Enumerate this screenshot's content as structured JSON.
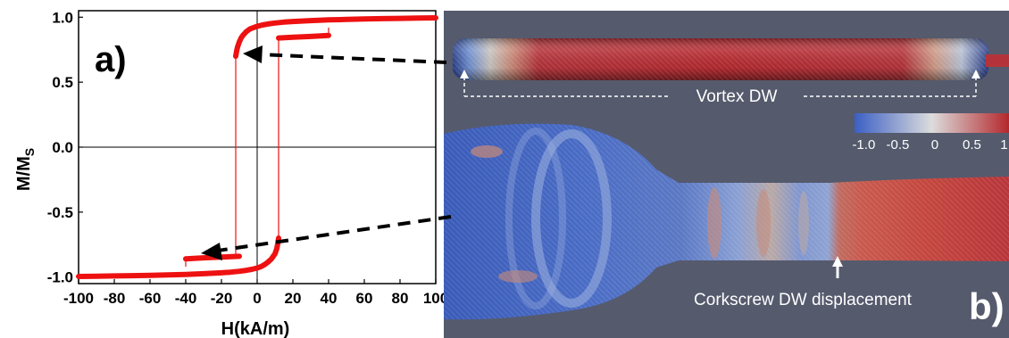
{
  "chart_data": {
    "type": "line",
    "panel_label": "a)",
    "xlabel": "H(kA/m)",
    "ylabel_main": "M/M",
    "ylabel_sub": "S",
    "xlim": [
      -100,
      100
    ],
    "ylim": [
      -1.05,
      1.05
    ],
    "xticks": [
      -100,
      -80,
      -60,
      -40,
      -20,
      0,
      20,
      40,
      60,
      80,
      100
    ],
    "xtick_labels": [
      "-100",
      "-80",
      "-60",
      "-40",
      "-20",
      "0",
      "20",
      "40",
      "60",
      "80",
      "100"
    ],
    "yticks": [
      1.0,
      0.5,
      0.0,
      -0.5,
      -1.0
    ],
    "ytick_labels": [
      "1.0",
      "0.5",
      "0.0",
      "-0.5",
      "-1.0"
    ],
    "series": [
      {
        "color": "#ee1111",
        "x": [
          -12,
          -11.5,
          -11,
          -10,
          -9,
          -8,
          -7,
          -6,
          -5,
          -4,
          -3,
          -2,
          0,
          3,
          6,
          10,
          15,
          20,
          30,
          40,
          50,
          60,
          70,
          80,
          90,
          100
        ],
        "y": [
          0.7,
          0.74,
          0.77,
          0.81,
          0.84,
          0.86,
          0.875,
          0.89,
          0.9,
          0.91,
          0.915,
          0.92,
          0.93,
          0.94,
          0.948,
          0.955,
          0.962,
          0.967,
          0.974,
          0.979,
          0.983,
          0.986,
          0.989,
          0.991,
          0.993,
          0.995
        ]
      },
      {
        "color": "#ee1111",
        "x": [
          -100,
          -90,
          -80,
          -70,
          -60,
          -50,
          -40,
          -30,
          -20,
          -15,
          -10,
          -6,
          -3,
          0,
          2,
          4,
          6,
          8,
          10,
          11,
          11.5,
          12
        ],
        "y": [
          -0.995,
          -0.993,
          -0.991,
          -0.989,
          -0.986,
          -0.983,
          -0.979,
          -0.974,
          -0.967,
          -0.962,
          -0.955,
          -0.948,
          -0.94,
          -0.93,
          -0.92,
          -0.905,
          -0.885,
          -0.86,
          -0.82,
          -0.78,
          -0.745,
          -0.7
        ]
      },
      {
        "color": "#ee1111",
        "x": [
          12,
          20,
          30,
          40
        ],
        "y": [
          0.84,
          0.846,
          0.852,
          0.86
        ]
      },
      {
        "color": "#ee1111",
        "x": [
          -40,
          -30,
          -20,
          -10
        ],
        "y": [
          -0.86,
          -0.852,
          -0.846,
          -0.84
        ]
      }
    ],
    "jump_lines": [
      {
        "x": -12,
        "y_from": 0.7,
        "y_to": -0.84
      },
      {
        "x": 12,
        "y_from": -0.7,
        "y_to": 0.84
      },
      {
        "x": 40,
        "y_from": 0.86,
        "y_to": 0.92
      },
      {
        "x": -40,
        "y_from": -0.86,
        "y_to": -0.92
      }
    ]
  },
  "simulation": {
    "panel_label": "b)",
    "vortex_label": "Vortex DW",
    "corkscrew_label": "Corkscrew DW displacement",
    "colorbar_ticks": [
      "-1.0",
      "-0.5",
      "0",
      "0.5",
      "1."
    ],
    "colors": {
      "background": "#555a6d",
      "negative": "#3b5fc4",
      "neutral": "#d9d9d9",
      "positive": "#b4282c"
    }
  }
}
